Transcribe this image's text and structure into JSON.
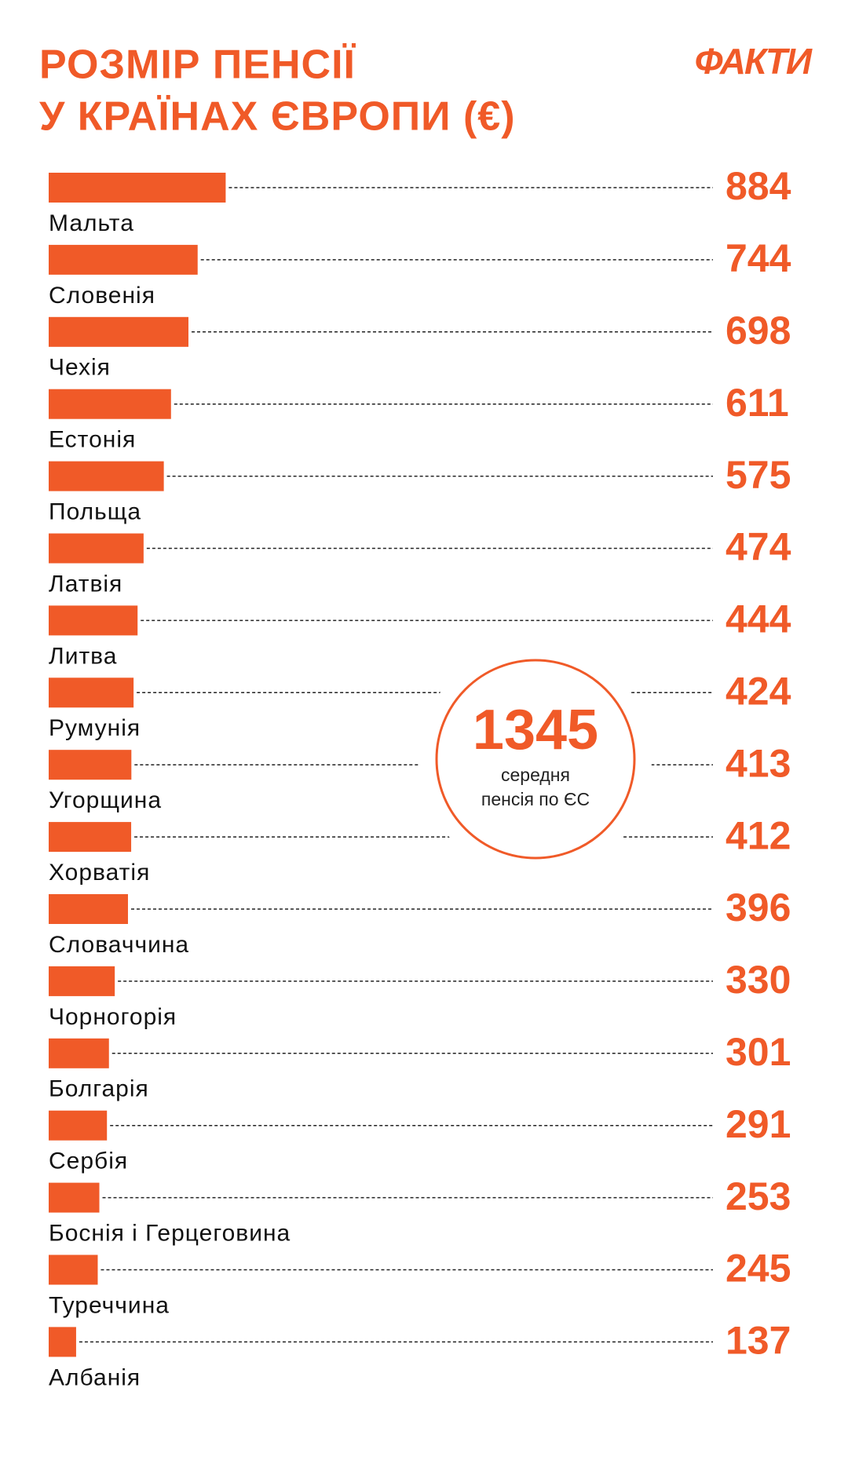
{
  "chart_data": {
    "type": "bar",
    "orientation": "horizontal",
    "title_lines": [
      "РОЗМІР ПЕНСІЇ",
      "У КРАЇНАХ ЄВРОПИ (€)"
    ],
    "logo": "ФАКТИ",
    "color": "#f05a28",
    "categories": [
      "Мальта",
      "Словенія",
      "Чехія",
      "Естонія",
      "Польща",
      "Латвія",
      "Литва",
      "Румунія",
      "Угорщина",
      "Хорватія",
      "Словаччина",
      "Чорногорія",
      "Болгарія",
      "Сербія",
      "Боснія і Герцеговина",
      "Туреччина",
      "Албанія"
    ],
    "values": [
      884,
      744,
      698,
      611,
      575,
      474,
      444,
      424,
      413,
      412,
      396,
      330,
      301,
      291,
      253,
      245,
      137
    ],
    "average": {
      "value": 1345,
      "text_lines": [
        "середня",
        "пенсія по ЄС"
      ]
    }
  }
}
